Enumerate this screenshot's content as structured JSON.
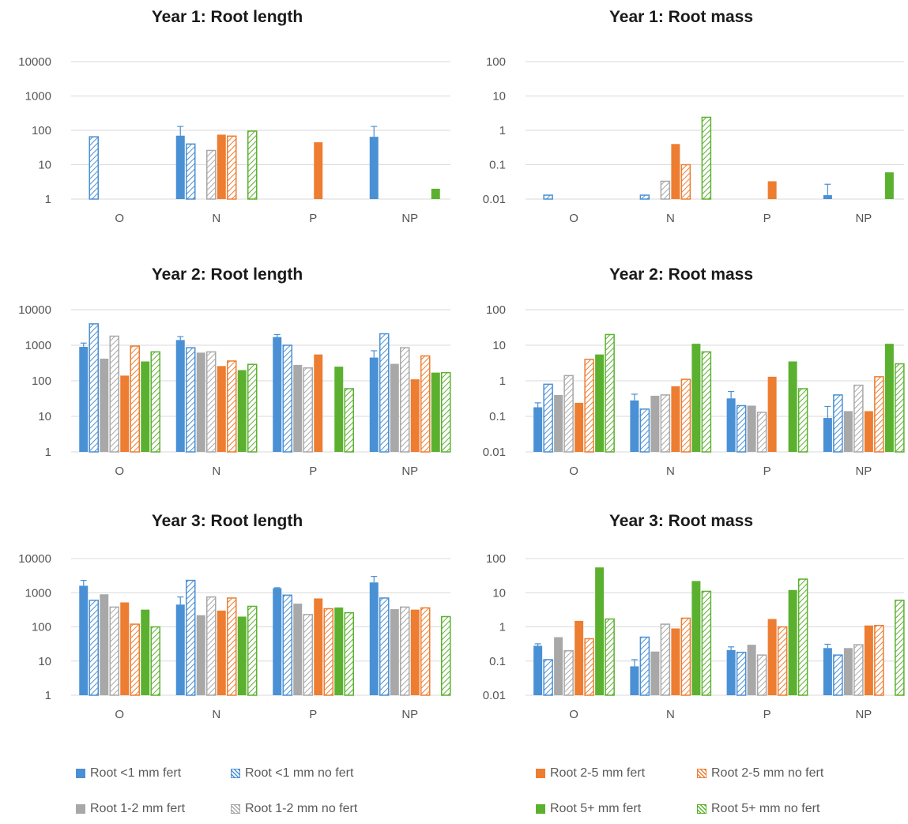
{
  "series": [
    {
      "key": "r1f",
      "name": "Root <1 mm fert",
      "color": "#4a90d4",
      "pattern": "solid"
    },
    {
      "key": "r1n",
      "name": "Root <1 mm no fert",
      "color": "#4a90d4",
      "pattern": "hatch"
    },
    {
      "key": "r12f",
      "name": "Root 1-2 mm fert",
      "color": "#a8a8a8",
      "pattern": "solid"
    },
    {
      "key": "r12n",
      "name": "Root 1-2 mm no fert",
      "color": "#a8a8a8",
      "pattern": "hatch"
    },
    {
      "key": "r25f",
      "name": "Root 2-5 mm fert",
      "color": "#ed7d31",
      "pattern": "solid"
    },
    {
      "key": "r25n",
      "name": "Root 2-5 mm no fert",
      "color": "#ed7d31",
      "pattern": "hatch"
    },
    {
      "key": "r5f",
      "name": "Root 5+ mm fert",
      "color": "#5bb12f",
      "pattern": "solid"
    },
    {
      "key": "r5n",
      "name": "Root 5+ mm no fert",
      "color": "#5bb12f",
      "pattern": "hatch"
    }
  ],
  "chart_data": [
    {
      "type": "bar",
      "title": "Year 1: Root length",
      "yscale": "log",
      "ylim": [
        1,
        10000
      ],
      "yticks": [
        "1",
        "10",
        "100",
        "1000",
        "10000"
      ],
      "categories": [
        "O",
        "N",
        "P",
        "NP"
      ],
      "values": {
        "r1f": [
          null,
          70,
          null,
          65
        ],
        "r1n": [
          65,
          40,
          null,
          null
        ],
        "r12f": [
          null,
          null,
          null,
          null
        ],
        "r12n": [
          null,
          26,
          null,
          null
        ],
        "r25f": [
          null,
          75,
          45,
          null
        ],
        "r25n": [
          null,
          68,
          null,
          null
        ],
        "r5f": [
          null,
          null,
          null,
          2
        ],
        "r5n": [
          null,
          95,
          null,
          null
        ]
      },
      "errors": {
        "r1f": [
          null,
          130,
          null,
          130
        ]
      }
    },
    {
      "type": "bar",
      "title": "Year 1: Root mass",
      "yscale": "log",
      "ylim": [
        0.01,
        100
      ],
      "yticks": [
        "0.01",
        "0.1",
        "1",
        "10",
        "100"
      ],
      "categories": [
        "O",
        "N",
        "P",
        "NP"
      ],
      "values": {
        "r1f": [
          null,
          null,
          null,
          0.013
        ],
        "r1n": [
          0.013,
          0.013,
          null,
          null
        ],
        "r12f": [
          null,
          null,
          null,
          null
        ],
        "r12n": [
          null,
          0.033,
          null,
          null
        ],
        "r25f": [
          null,
          0.4,
          0.033,
          null
        ],
        "r25n": [
          null,
          0.1,
          null,
          null
        ],
        "r5f": [
          null,
          null,
          null,
          0.06
        ],
        "r5n": [
          null,
          2.4,
          null,
          null
        ]
      },
      "errors": {
        "r1f": [
          null,
          null,
          null,
          0.027
        ]
      }
    },
    {
      "type": "bar",
      "title": "Year 2: Root length",
      "yscale": "log",
      "ylim": [
        1,
        10000
      ],
      "yticks": [
        "1",
        "10",
        "100",
        "1000",
        "10000"
      ],
      "categories": [
        "O",
        "N",
        "P",
        "NP"
      ],
      "values": {
        "r1f": [
          900,
          1400,
          1700,
          450
        ],
        "r1n": [
          4000,
          850,
          1000,
          2100
        ],
        "r12f": [
          420,
          620,
          280,
          300
        ],
        "r12n": [
          1800,
          650,
          230,
          850
        ],
        "r25f": [
          140,
          260,
          550,
          110
        ],
        "r25n": [
          950,
          360,
          null,
          500
        ],
        "r5f": [
          350,
          200,
          250,
          170
        ],
        "r5n": [
          650,
          290,
          60,
          170
        ]
      },
      "errors": {
        "r1f": [
          1150,
          1750,
          2000,
          700
        ]
      }
    },
    {
      "type": "bar",
      "title": "Year 2: Root mass",
      "yscale": "log",
      "ylim": [
        0.01,
        100
      ],
      "yticks": [
        "0.01",
        "0.1",
        "1",
        "10",
        "100"
      ],
      "categories": [
        "O",
        "N",
        "P",
        "NP"
      ],
      "values": {
        "r1f": [
          0.18,
          0.28,
          0.32,
          0.09
        ],
        "r1n": [
          0.8,
          0.16,
          0.2,
          0.4
        ],
        "r12f": [
          0.4,
          0.38,
          0.2,
          0.14
        ],
        "r12n": [
          1.4,
          0.4,
          0.13,
          0.75
        ],
        "r25f": [
          0.24,
          0.7,
          1.3,
          0.14
        ],
        "r25n": [
          4,
          1.1,
          null,
          1.3
        ],
        "r5f": [
          5.5,
          11,
          3.5,
          11
        ],
        "r5n": [
          20,
          6.5,
          0.6,
          3
        ]
      },
      "errors": {
        "r1f": [
          0.24,
          0.42,
          0.5,
          0.19
        ]
      }
    },
    {
      "type": "bar",
      "title": "Year 3: Root length",
      "yscale": "log",
      "ylim": [
        1,
        10000
      ],
      "yticks": [
        "1",
        "10",
        "100",
        "1000",
        "10000"
      ],
      "categories": [
        "O",
        "N",
        "P",
        "NP"
      ],
      "values": {
        "r1f": [
          1600,
          450,
          1350,
          2000
        ],
        "r1n": [
          600,
          2300,
          850,
          700
        ],
        "r12f": [
          900,
          220,
          480,
          330
        ],
        "r12n": [
          380,
          750,
          230,
          380
        ],
        "r25f": [
          520,
          300,
          680,
          320
        ],
        "r25n": [
          120,
          700,
          340,
          360
        ],
        "r5f": [
          320,
          200,
          370,
          null
        ],
        "r5n": [
          100,
          400,
          260,
          200
        ]
      },
      "errors": {
        "r1f": [
          2300,
          750,
          1400,
          3000
        ]
      }
    },
    {
      "type": "bar",
      "title": "Year 3: Root mass",
      "yscale": "log",
      "ylim": [
        0.01,
        100
      ],
      "yticks": [
        "0.01",
        "0.1",
        "1",
        "10",
        "100"
      ],
      "categories": [
        "O",
        "N",
        "P",
        "NP"
      ],
      "values": {
        "r1f": [
          0.28,
          0.07,
          0.21,
          0.24
        ],
        "r1n": [
          0.11,
          0.5,
          0.18,
          0.15
        ],
        "r12f": [
          0.5,
          0.19,
          0.3,
          0.24
        ],
        "r12n": [
          0.2,
          1.2,
          0.15,
          0.3
        ],
        "r25f": [
          1.5,
          0.9,
          1.7,
          1.1
        ],
        "r25n": [
          0.45,
          1.8,
          1.0,
          1.1
        ],
        "r5f": [
          55,
          22,
          12,
          null
        ],
        "r5n": [
          1.7,
          11,
          25,
          6
        ]
      },
      "errors": {
        "r1f": [
          0.32,
          0.11,
          0.26,
          0.31
        ]
      }
    }
  ]
}
